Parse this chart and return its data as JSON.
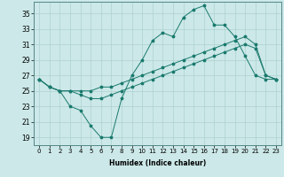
{
  "xlabel": "Humidex (Indice chaleur)",
  "ylabel": "",
  "bg_color": "#cce8e8",
  "line_color": "#1a7a6e",
  "grid_color": "#a8cccc",
  "xlim": [
    -0.5,
    23.5
  ],
  "ylim": [
    18.0,
    36.5
  ],
  "yticks": [
    19,
    21,
    23,
    25,
    27,
    29,
    31,
    33,
    35
  ],
  "xticks": [
    0,
    1,
    2,
    3,
    4,
    5,
    6,
    7,
    8,
    9,
    10,
    11,
    12,
    13,
    14,
    15,
    16,
    17,
    18,
    19,
    20,
    21,
    22,
    23
  ],
  "line1_x": [
    0,
    1,
    2,
    3,
    4,
    5,
    6,
    7,
    8,
    9,
    10,
    11,
    12,
    13,
    14,
    15,
    16,
    17,
    18,
    19,
    20,
    21,
    22,
    23
  ],
  "line1_y": [
    26.5,
    25.5,
    25.0,
    23.0,
    22.5,
    20.5,
    19.0,
    19.0,
    24.0,
    27.0,
    29.0,
    31.5,
    32.5,
    32.0,
    34.5,
    35.5,
    36.0,
    33.5,
    33.5,
    32.0,
    29.5,
    27.0,
    26.5,
    26.5
  ],
  "line2_x": [
    0,
    1,
    2,
    3,
    4,
    5,
    6,
    7,
    8,
    9,
    10,
    11,
    12,
    13,
    14,
    15,
    16,
    17,
    18,
    19,
    20,
    21,
    22,
    23
  ],
  "line2_y": [
    26.5,
    25.5,
    25.0,
    25.0,
    25.0,
    25.0,
    25.5,
    25.5,
    26.0,
    26.5,
    27.0,
    27.5,
    28.0,
    28.5,
    29.0,
    29.5,
    30.0,
    30.5,
    31.0,
    31.5,
    32.0,
    31.0,
    27.0,
    26.5
  ],
  "line3_x": [
    0,
    1,
    2,
    3,
    4,
    5,
    6,
    7,
    8,
    9,
    10,
    11,
    12,
    13,
    14,
    15,
    16,
    17,
    18,
    19,
    20,
    21,
    22,
    23
  ],
  "line3_y": [
    26.5,
    25.5,
    25.0,
    25.0,
    24.5,
    24.0,
    24.0,
    24.5,
    25.0,
    25.5,
    26.0,
    26.5,
    27.0,
    27.5,
    28.0,
    28.5,
    29.0,
    29.5,
    30.0,
    30.5,
    31.0,
    30.5,
    27.0,
    26.5
  ],
  "xlabel_fontsize": 5.5,
  "tick_fontsize": 5,
  "ytick_fontsize": 5.5
}
